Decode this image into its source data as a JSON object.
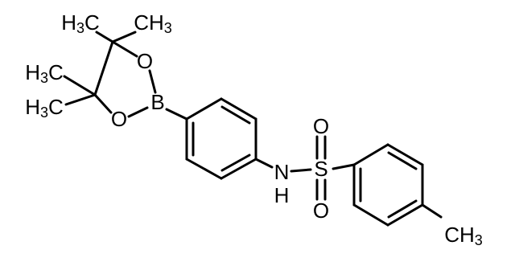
{
  "atoms": [
    {
      "label": "H",
      "sub": "3",
      "tail": "C"
    },
    {
      "label": "CH",
      "sub": "3"
    },
    {
      "label": "H",
      "sub": "3",
      "tail": "C"
    },
    {
      "label": "H",
      "sub": "3",
      "tail": "C"
    },
    {
      "label": "O"
    },
    {
      "label": "O"
    },
    {
      "label": "B"
    },
    {
      "label": "N"
    },
    {
      "label": "H"
    },
    {
      "label": "S"
    },
    {
      "label": "O"
    },
    {
      "label": "O"
    },
    {
      "label": "CH",
      "sub": "3"
    }
  ]
}
